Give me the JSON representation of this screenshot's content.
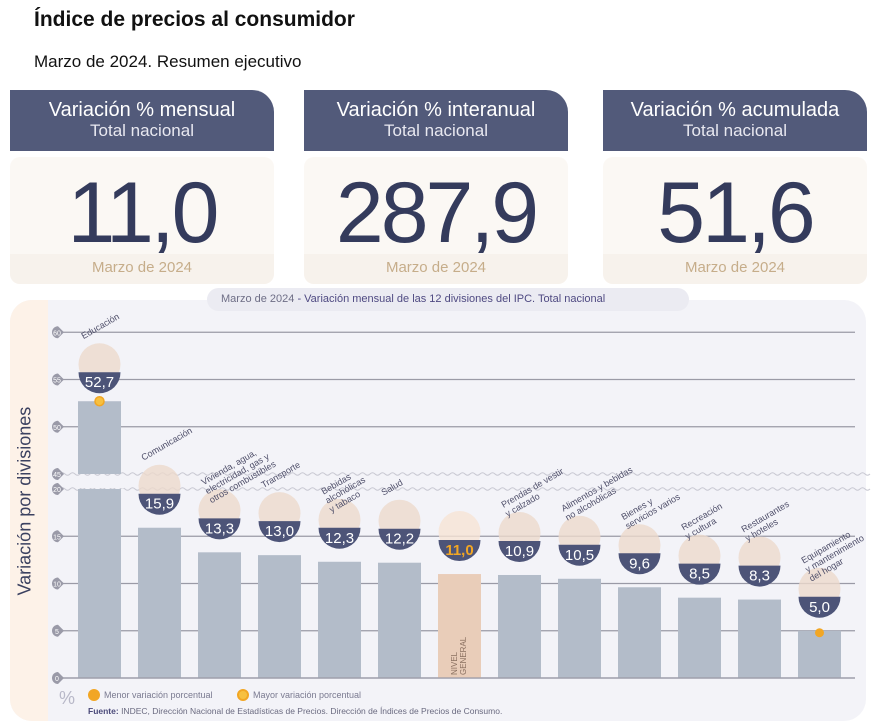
{
  "header": {
    "title": "Índice de precios al consumidor",
    "subtitle": "Marzo de 2024. Resumen ejecutivo"
  },
  "cards": [
    {
      "title": "Variación % mensual",
      "subtitle": "Total nacional",
      "value": "11,0",
      "date": "Marzo de 2024"
    },
    {
      "title": "Variación % interanual",
      "subtitle": "Total nacional",
      "value": "287,9",
      "date": "Marzo de 2024"
    },
    {
      "title": "Variación % acumulada",
      "subtitle": "Total nacional",
      "value": "51,6",
      "date": "Marzo de 2024"
    }
  ],
  "chart_title": {
    "date": "Marzo de 2024",
    "text": " - Variación mensual de las 12 divisiones del IPC. Total nacional"
  },
  "legend": {
    "min": "Menor variación porcentual",
    "max": "Mayor variación porcentual",
    "unit": "%"
  },
  "source": {
    "label": "Fuente:",
    "text": " INDEC, Dirección Nacional de Estadísticas de Precios. Dirección de Índices de Precios de Consumo."
  },
  "colors": {
    "bar": "#b3bcc9",
    "general": "#e9cdb9",
    "badge": "#4d5478",
    "accent": "#f2a624",
    "grid": "#9a9aa6"
  },
  "chart_data": {
    "type": "bar",
    "ylabel": "Variación por divisiones",
    "yaxis_break": [
      20,
      45
    ],
    "yticks": [
      0,
      5,
      10,
      15,
      20,
      45,
      50,
      55,
      60
    ],
    "ylim": [
      0,
      60
    ],
    "categories": [
      {
        "label": [
          "Educación"
        ],
        "value": 52.7,
        "display": "52,7",
        "icon": "notebook-icon",
        "marker": "max"
      },
      {
        "label": [
          "Comunicación"
        ],
        "value": 15.9,
        "display": "15,9",
        "icon": "smartphone-icon"
      },
      {
        "label": [
          "Vivienda, agua,",
          "electricidad, gas y",
          "otros combustibles"
        ],
        "value": 13.3,
        "display": "13,3",
        "icon": "lightbulb-icon"
      },
      {
        "label": [
          "Transporte"
        ],
        "value": 13.0,
        "display": "13,0",
        "icon": "sube-card-icon"
      },
      {
        "label": [
          "Bebidas",
          "alcohólicas",
          "y tabaco"
        ],
        "value": 12.3,
        "display": "12,3",
        "icon": "bottles-icon"
      },
      {
        "label": [
          "Salud"
        ],
        "value": 12.2,
        "display": "12,2",
        "icon": "first-aid-icon"
      },
      {
        "label": [],
        "value": 11.0,
        "display": "11,0",
        "icon": "shopping-bag-icon",
        "general": true,
        "inner_label": [
          "NIVEL",
          "GENERAL"
        ]
      },
      {
        "label": [
          "Prendas de vestir",
          "y calzado"
        ],
        "value": 10.9,
        "display": "10,9",
        "icon": "tshirt-icon"
      },
      {
        "label": [
          "Alimentos y bebidas",
          "no alcohólicas"
        ],
        "value": 10.5,
        "display": "10,5",
        "icon": "roast-chicken-icon"
      },
      {
        "label": [
          "Bienes y",
          "servicios varios"
        ],
        "value": 9.6,
        "display": "9,6",
        "icon": "comb-icon"
      },
      {
        "label": [
          "Recreación",
          "y cultura"
        ],
        "value": 8.5,
        "display": "8,5",
        "icon": "beach-umbrella-icon"
      },
      {
        "label": [
          "Restaurantes",
          "y hoteles"
        ],
        "value": 8.3,
        "display": "8,3",
        "icon": "plate-cutlery-icon"
      },
      {
        "label": [
          "Equipamiento",
          "y mantenimiento",
          "del hogar"
        ],
        "value": 5.0,
        "display": "5,0",
        "icon": "washing-machine-icon",
        "marker": "min"
      }
    ]
  }
}
